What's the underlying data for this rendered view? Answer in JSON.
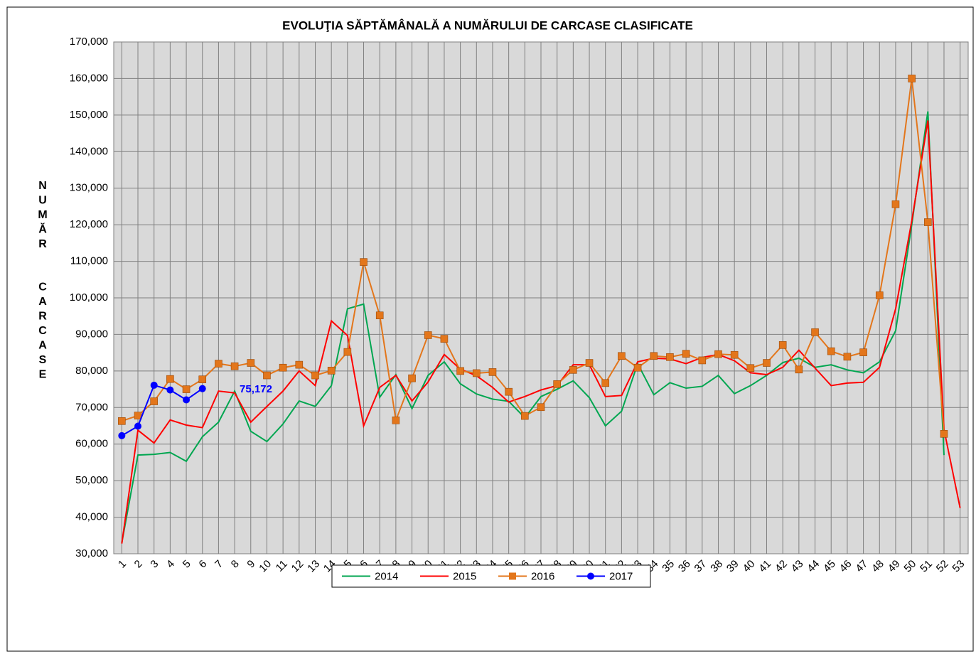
{
  "chart_data": {
    "type": "line",
    "title": "EVOLUŢIA SĂPTĂMÂNALĂ A NUMĂRULUI DE CARCASE  CLASIFICATE",
    "y_label": "NUMĂR CARCASE",
    "annotation": "75,172",
    "categories": [
      "1",
      "2",
      "3",
      "4",
      "5",
      "6",
      "7",
      "8",
      "9",
      "10",
      "11",
      "12",
      "13",
      "14",
      "15",
      "16",
      "17",
      "18",
      "19",
      "20",
      "21",
      "22",
      "23",
      "24",
      "25",
      "26",
      "27",
      "28",
      "29",
      "30",
      "31",
      "32",
      "33",
      "34",
      "35",
      "36",
      "37",
      "38",
      "39",
      "40",
      "41",
      "42",
      "43",
      "44",
      "45",
      "46",
      "47",
      "48",
      "49",
      "50",
      "51",
      "52",
      "53"
    ],
    "ylim": [
      30000,
      170000
    ],
    "yticks": [
      {
        "value": 30000,
        "label": "30,000"
      },
      {
        "value": 40000,
        "label": "40,000"
      },
      {
        "value": 50000,
        "label": "50,000"
      },
      {
        "value": 60000,
        "label": "60,000"
      },
      {
        "value": 70000,
        "label": "70,000"
      },
      {
        "value": 80000,
        "label": "80,000"
      },
      {
        "value": 90000,
        "label": "90,000"
      },
      {
        "value": 100000,
        "label": "100,000"
      },
      {
        "value": 110000,
        "label": "110,000"
      },
      {
        "value": 120000,
        "label": "120,000"
      },
      {
        "value": 130000,
        "label": "130,000"
      },
      {
        "value": 140000,
        "label": "140,000"
      },
      {
        "value": 150000,
        "label": "150,000"
      },
      {
        "value": 160000,
        "label": "160,000"
      },
      {
        "value": 170000,
        "label": "170,000"
      }
    ],
    "grid": true,
    "series": [
      {
        "name": "2014",
        "color": "#00a650",
        "marker": null,
        "values": [
          33000,
          57000,
          57200,
          57700,
          55300,
          62000,
          66000,
          74500,
          63500,
          60700,
          65500,
          71800,
          70300,
          76000,
          97000,
          98300,
          72800,
          79000,
          69700,
          78800,
          82500,
          76500,
          73700,
          72300,
          71700,
          67200,
          73000,
          75000,
          77300,
          72700,
          65000,
          69000,
          82000,
          73500,
          76800,
          75300,
          75800,
          78800,
          73800,
          76000,
          78800,
          82300,
          83500,
          81000,
          81700,
          80300,
          79500,
          82500,
          91000,
          120000,
          151000,
          57000,
          null
        ]
      },
      {
        "name": "2015",
        "color": "#ff0000",
        "marker": null,
        "values": [
          32800,
          63800,
          60300,
          66600,
          65200,
          64500,
          74500,
          74000,
          66000,
          70300,
          74500,
          80000,
          76000,
          93700,
          89700,
          65000,
          75500,
          78800,
          71800,
          77000,
          84500,
          80500,
          78700,
          75500,
          71500,
          73000,
          74800,
          76000,
          81700,
          81700,
          73000,
          73300,
          82500,
          83500,
          83300,
          82000,
          83700,
          84500,
          82800,
          79500,
          79000,
          81000,
          85700,
          80800,
          76000,
          76700,
          76900,
          81000,
          97000,
          121000,
          148500,
          64000,
          42500
        ]
      },
      {
        "name": "2016",
        "color": "#e3761b",
        "marker": "square",
        "values": [
          66300,
          67800,
          71700,
          77800,
          75000,
          77700,
          82000,
          81300,
          82200,
          78800,
          80900,
          81700,
          78800,
          80100,
          85200,
          109800,
          95200,
          66500,
          78000,
          89800,
          88800,
          80000,
          79400,
          79700,
          74300,
          67700,
          70100,
          76400,
          80300,
          82200,
          76700,
          84100,
          80900,
          84100,
          83800,
          84700,
          82900,
          84600,
          84400,
          80800,
          82200,
          87100,
          80400,
          90600,
          85400,
          83900,
          85100,
          100700,
          125600,
          160000,
          120700,
          62800,
          null
        ]
      },
      {
        "name": "2017",
        "color": "#0000ff",
        "marker": "circle",
        "values": [
          62300,
          64900,
          76100,
          74800,
          72100,
          75172,
          null,
          null,
          null,
          null,
          null,
          null,
          null,
          null,
          null,
          null,
          null,
          null,
          null,
          null,
          null,
          null,
          null,
          null,
          null,
          null,
          null,
          null,
          null,
          null,
          null,
          null,
          null,
          null,
          null,
          null,
          null,
          null,
          null,
          null,
          null,
          null,
          null,
          null,
          null,
          null,
          null,
          null,
          null,
          null,
          null,
          null,
          null
        ]
      }
    ]
  }
}
